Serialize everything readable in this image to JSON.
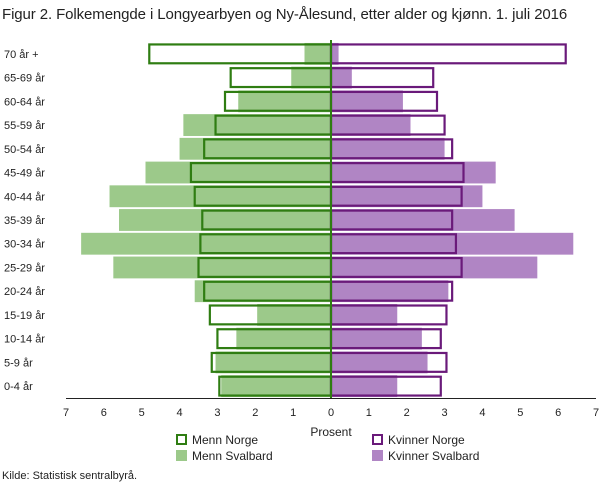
{
  "title": "Figur 2. Folkemengde i Longyearbyen og Ny-Ålesund, etter alder og kjønn. 1. juli 2016",
  "source": "Kilde: Statistisk sentralbyrå.",
  "chart_data": {
    "type": "bar",
    "orientation": "horizontal-population-pyramid",
    "xlabel": "Prosent",
    "xlim": [
      -7,
      7
    ],
    "x_tick_values": [
      -7,
      -6,
      -5,
      -4,
      -3,
      -2,
      -1,
      0,
      1,
      2,
      3,
      4,
      5,
      6,
      7
    ],
    "x_tick_labels": [
      "7",
      "6",
      "5",
      "4",
      "3",
      "2",
      "1",
      "0",
      "1",
      "2",
      "3",
      "4",
      "5",
      "6",
      "7"
    ],
    "categories": [
      "70 år +",
      "65-69 år",
      "60-64 år",
      "55-59 år",
      "50-54 år",
      "45-49 år",
      "40-44 år",
      "35-39 år",
      "30-34 år",
      "25-29 år",
      "20-24 år",
      "15-19 år",
      "10-14 år",
      "5-9 år",
      "0-4 år"
    ],
    "legend_position": "bottom",
    "series": [
      {
        "name": "Menn Norge",
        "style": "outline",
        "side": "left",
        "color": "#2f7d12",
        "values": [
          4.8,
          2.65,
          2.8,
          3.05,
          3.35,
          3.7,
          3.6,
          3.4,
          3.45,
          3.5,
          3.35,
          3.2,
          3.0,
          3.15,
          2.95
        ]
      },
      {
        "name": "Kvinner Norge",
        "style": "outline",
        "side": "right",
        "color": "#6a1a7a",
        "values": [
          6.2,
          2.7,
          2.8,
          3.0,
          3.2,
          3.5,
          3.45,
          3.2,
          3.3,
          3.45,
          3.2,
          3.05,
          2.9,
          3.05,
          2.9
        ]
      },
      {
        "name": "Menn Svalbard",
        "style": "fill",
        "side": "left",
        "color": "#9cc98a",
        "values": [
          0.7,
          1.05,
          2.45,
          3.9,
          4.0,
          4.9,
          5.85,
          5.6,
          6.6,
          5.75,
          3.6,
          1.95,
          2.5,
          3.05,
          2.9
        ]
      },
      {
        "name": "Kvinner Svalbard",
        "style": "fill",
        "side": "right",
        "color": "#b085c4",
        "values": [
          0.2,
          0.55,
          1.9,
          2.1,
          3.0,
          4.35,
          4.0,
          4.85,
          6.4,
          5.45,
          3.1,
          1.75,
          2.4,
          2.55,
          1.75
        ]
      }
    ]
  }
}
